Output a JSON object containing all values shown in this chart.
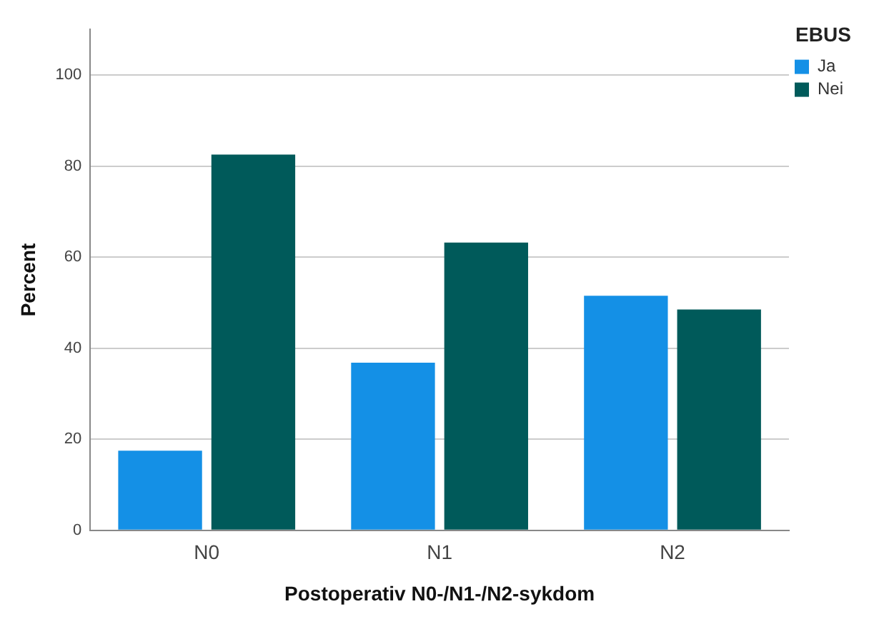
{
  "chart_data": {
    "type": "bar",
    "xlabel": "Postoperativ N0-/N1-/N2-sykdom",
    "ylabel": "Percent",
    "legend_title": "EBUS",
    "categories": [
      "N0",
      "N1",
      "N2"
    ],
    "series": [
      {
        "name": "Ja",
        "color": "#1490e6",
        "values": [
          17.5,
          36.8,
          51.5
        ]
      },
      {
        "name": "Nei",
        "color": "#005a5a",
        "values": [
          82.5,
          63.2,
          48.5
        ]
      }
    ],
    "ylim": [
      0,
      110
    ],
    "yticks": [
      0,
      20,
      40,
      60,
      80,
      100
    ],
    "grid": "y",
    "legend": "top right"
  }
}
